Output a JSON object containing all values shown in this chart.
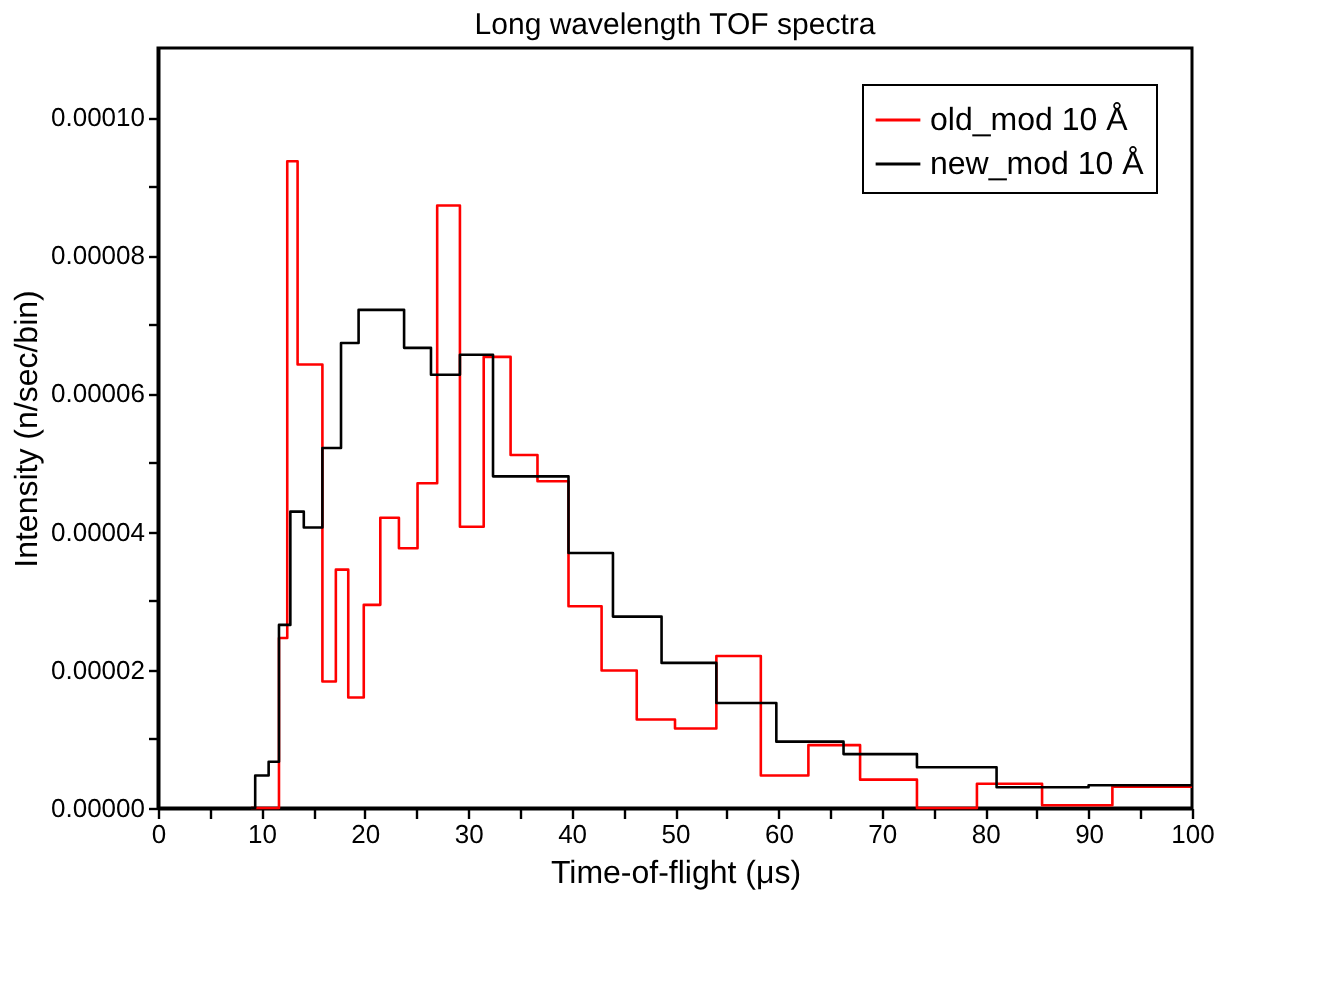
{
  "chart_data": {
    "type": "step",
    "title": "Long wavelength TOF spectra",
    "xlabel": "Time-of-flight (μs)",
    "ylabel": "Intensity (n/sec/bin)",
    "xlim": [
      0,
      100
    ],
    "ylim": [
      0,
      0.00011
    ],
    "xticks": [
      0,
      {
        "value": 5,
        "label": null
      },
      10,
      {
        "value": 15,
        "label": null
      },
      20,
      {
        "value": 25,
        "label": null
      },
      30,
      {
        "value": 35,
        "label": null
      },
      40,
      {
        "value": 45,
        "label": null
      },
      50,
      {
        "value": 55,
        "label": null
      },
      60,
      {
        "value": 65,
        "label": null
      },
      70,
      {
        "value": 75,
        "label": null
      },
      80,
      {
        "value": 85,
        "label": null
      },
      90,
      {
        "value": 95,
        "label": null
      },
      100
    ],
    "yticks": [
      {
        "value": 0,
        "label": "0.00000"
      },
      {
        "value": 1e-05,
        "label": null
      },
      {
        "value": 2e-05,
        "label": "0.00002"
      },
      {
        "value": 3e-05,
        "label": null
      },
      {
        "value": 4e-05,
        "label": "0.00004"
      },
      {
        "value": 5e-05,
        "label": null
      },
      {
        "value": 6e-05,
        "label": "0.00006"
      },
      {
        "value": 7e-05,
        "label": null
      },
      {
        "value": 8e-05,
        "label": "0.00008"
      },
      {
        "value": 9e-05,
        "label": null
      },
      {
        "value": 0.0001,
        "label": "0.00010"
      }
    ],
    "grid": false,
    "legend": "top right",
    "line_style": "solid",
    "marker": "none",
    "series": [
      {
        "name": "old_mod 10 Å",
        "color": "#ff0000",
        "x": [
          9,
          11.7,
          12.5,
          13.5,
          15.9,
          17.2,
          18.4,
          19.9,
          21.5,
          23.3,
          25.1,
          27.0,
          29.2,
          31.5,
          34.1,
          36.7,
          39.7,
          42.9,
          46.3,
          50.0,
          54.0,
          58.3,
          62.9,
          67.9,
          73.4,
          79.2,
          85.5,
          92.3,
          100
        ],
        "values": [
          0,
          2.46e-05,
          9.36e-05,
          6.42e-05,
          1.83e-05,
          3.45e-05,
          1.6e-05,
          2.94e-05,
          4.2e-05,
          3.76e-05,
          4.7e-05,
          8.72e-05,
          4.07e-05,
          6.53e-05,
          5.11e-05,
          4.73e-05,
          2.92e-05,
          1.99e-05,
          1.28e-05,
          1.15e-05,
          2.2e-05,
          4.7e-06,
          9.1e-06,
          4.1e-06,
          0,
          3.5e-06,
          4e-07,
          3.1e-06,
          3.1e-06
        ]
      },
      {
        "name": "new_mod 10 Å",
        "color": "#000000",
        "x": [
          9,
          9.4,
          10.7,
          11.7,
          12.8,
          14.1,
          15.9,
          17.7,
          19.4,
          23.8,
          26.4,
          29.2,
          32.4,
          39.7,
          44.0,
          48.7,
          54.0,
          59.8,
          66.3,
          73.4,
          81.1,
          90.0,
          100
        ],
        "values": [
          0,
          4.7e-06,
          6.7e-06,
          2.65e-05,
          4.29e-05,
          4.06e-05,
          5.21e-05,
          6.73e-05,
          7.21e-05,
          6.66e-05,
          6.27e-05,
          6.56e-05,
          4.8e-05,
          3.69e-05,
          2.77e-05,
          2.1e-05,
          1.52e-05,
          9.6e-06,
          7.8e-06,
          5.9e-06,
          3e-06,
          3.3e-06,
          3.3e-06
        ]
      }
    ]
  }
}
